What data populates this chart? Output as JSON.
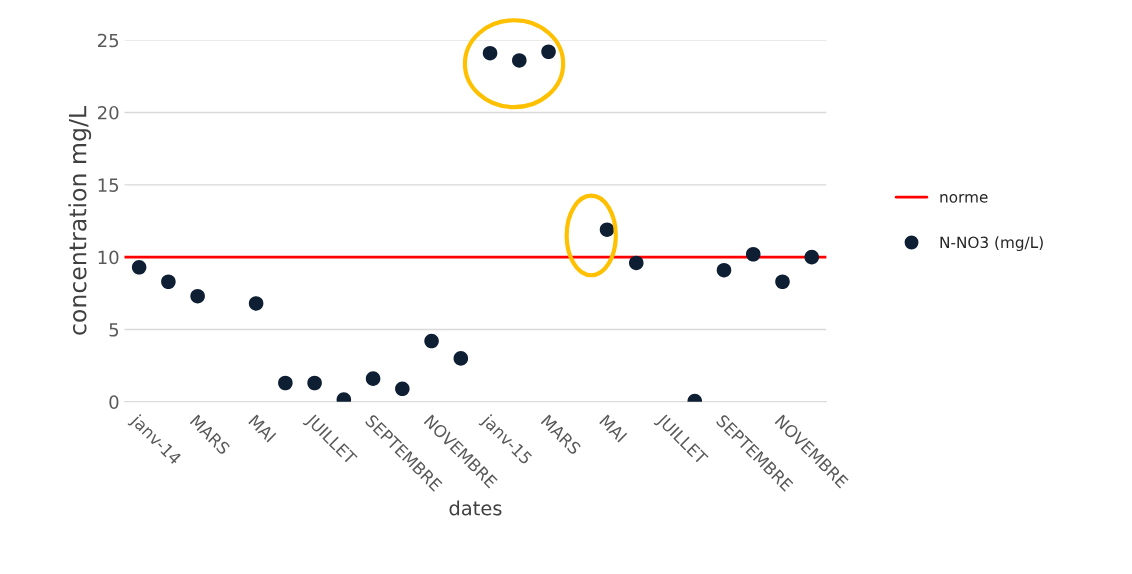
{
  "chart_data": {
    "type": "scatter",
    "xlabel": "dates",
    "ylabel": "concentration mg/L",
    "categories": [
      "janv-14",
      null,
      "MARS",
      null,
      "MAI",
      null,
      "JUILLET",
      null,
      "SEPTEMBRE",
      null,
      "NOVEMBRE",
      null,
      "janv-15",
      null,
      "MARS",
      null,
      "MAI",
      null,
      "JUILLET",
      null,
      "SEPTEMBRE",
      null,
      "NOVEMBRE",
      null
    ],
    "series": [
      {
        "name": "N-NO3 (mg/L)",
        "color": "#0e1e33",
        "values": [
          9.3,
          8.3,
          7.3,
          null,
          6.8,
          1.3,
          1.3,
          0.15,
          1.6,
          0.9,
          4.2,
          3.0,
          24.1,
          23.6,
          24.2,
          null,
          11.9,
          9.6,
          null,
          0.05,
          9.1,
          10.2,
          8.3,
          10.0
        ]
      }
    ],
    "ref_lines": [
      {
        "axis": "y",
        "value": 10,
        "label": "norme",
        "color": "#ff0000"
      }
    ],
    "ylim": [
      0,
      25
    ],
    "yticks": [
      0,
      5,
      10,
      15,
      20,
      25
    ],
    "grid": "y",
    "legend": "right",
    "marker": "circle"
  }
}
